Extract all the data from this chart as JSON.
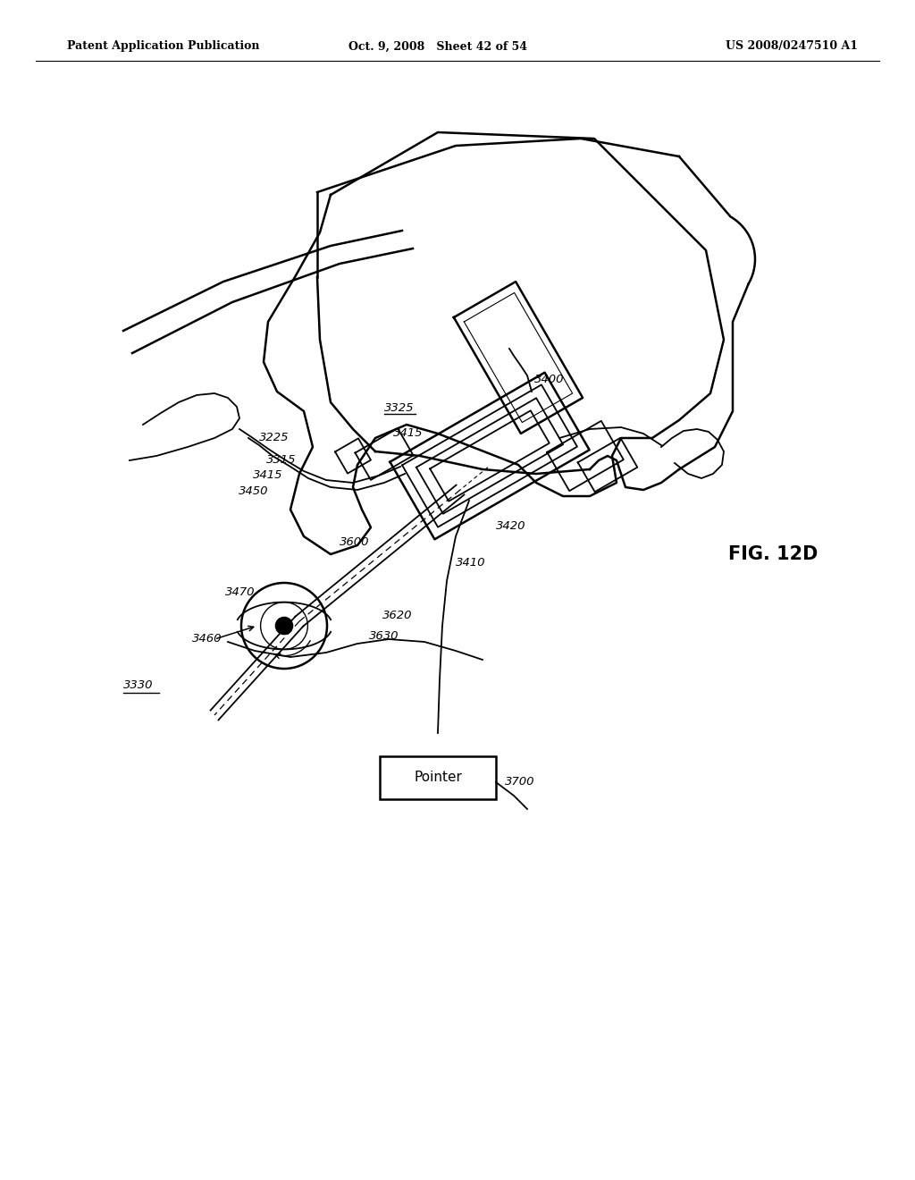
{
  "bg_color": "#ffffff",
  "header_left": "Patent Application Publication",
  "header_mid": "Oct. 9, 2008   Sheet 42 of 54",
  "header_right": "US 2008/0247510 A1",
  "fig_label": "FIG. 12D",
  "pointer_label": "Pointer",
  "line_color": "#000000"
}
